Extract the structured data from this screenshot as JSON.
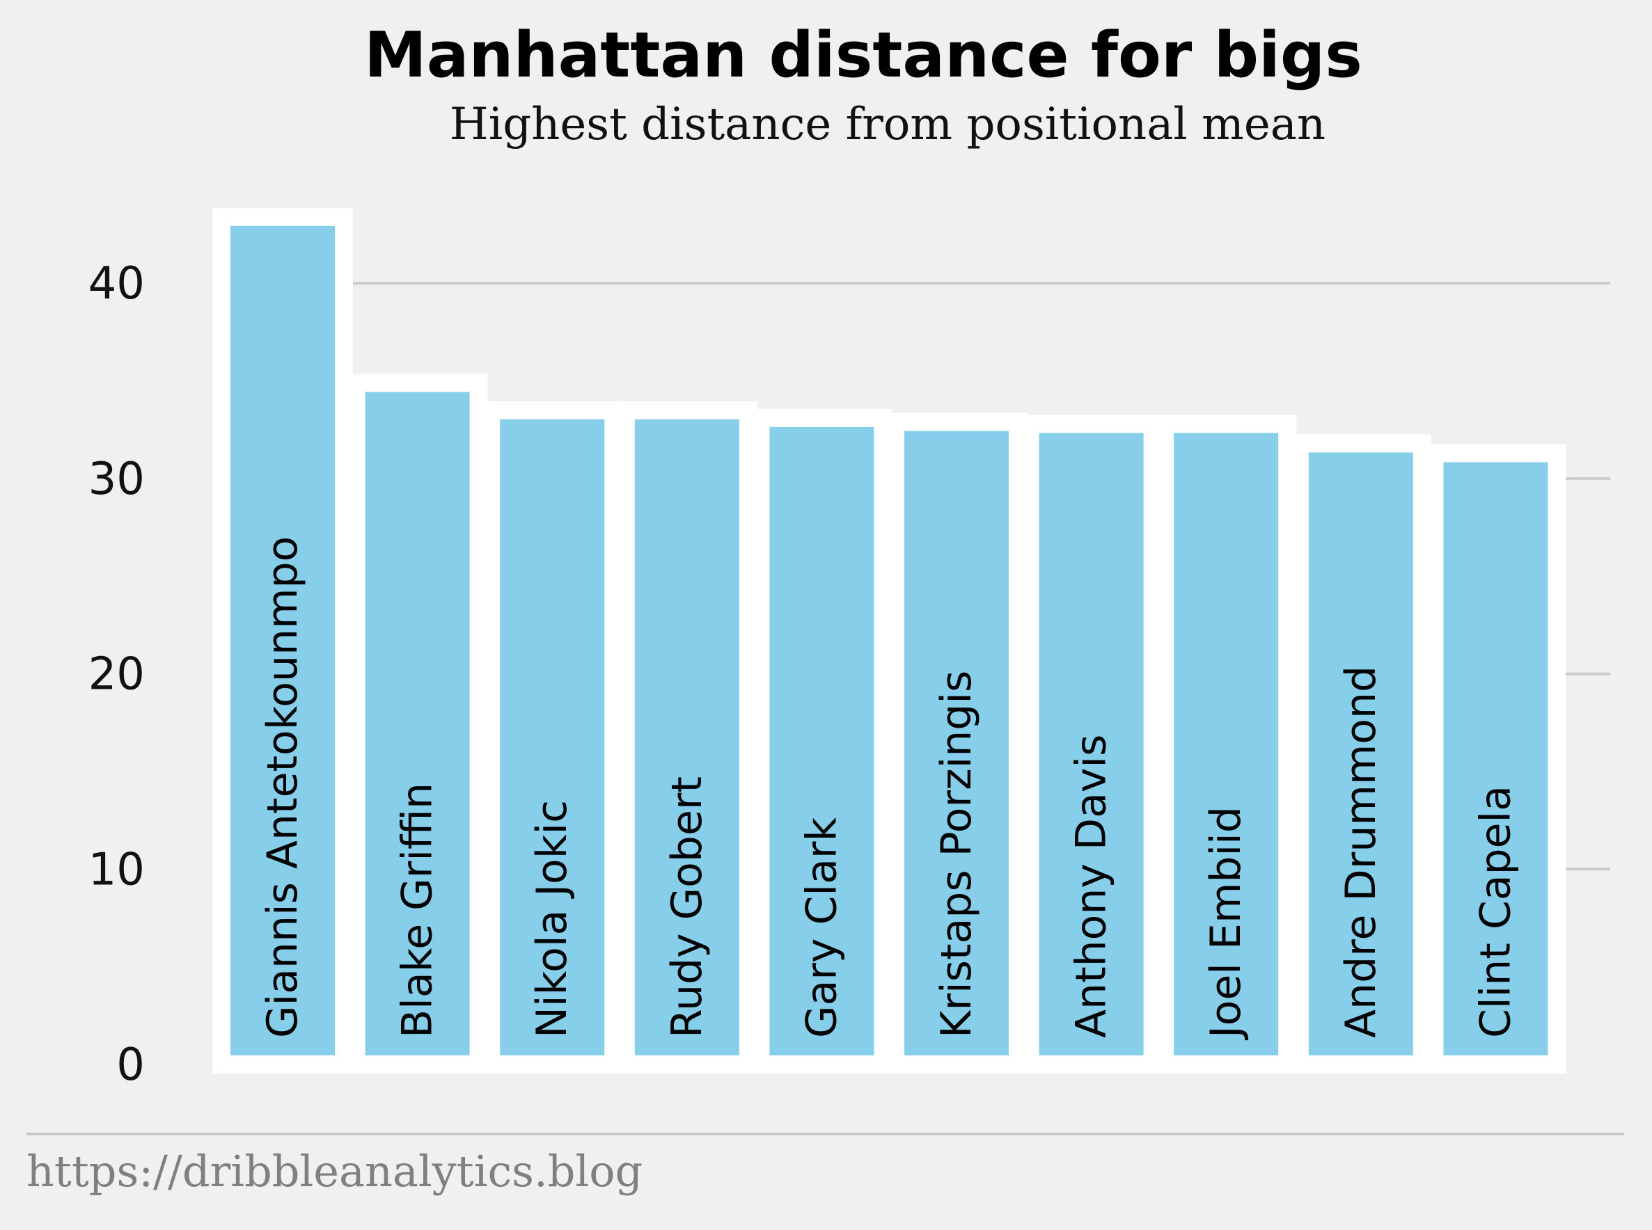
{
  "chart_data": {
    "type": "bar",
    "title": "Manhattan distance for bigs",
    "subtitle": "Highest distance from positional mean",
    "categories": [
      "Giannis Antetokounmpo",
      "Blake Griffin",
      "Nikola Jokic",
      "Rudy Gobert",
      "Gary Clark",
      "Kristaps Porzingis",
      "Anthony Davis",
      "Joel Embiid",
      "Andre Drummond",
      "Clint Capela"
    ],
    "values": [
      43.4,
      34.9,
      33.5,
      33.5,
      33.1,
      32.9,
      32.8,
      32.8,
      31.8,
      31.3
    ],
    "ylim": [
      0,
      45
    ],
    "yticks": [
      0,
      10,
      20,
      30,
      40
    ],
    "grid": true,
    "bar_color": "#87ceeb",
    "bar_edge_color": "#ffffff",
    "background": "#f0f0f0",
    "source": "https://dribbleanalytics.blog"
  }
}
